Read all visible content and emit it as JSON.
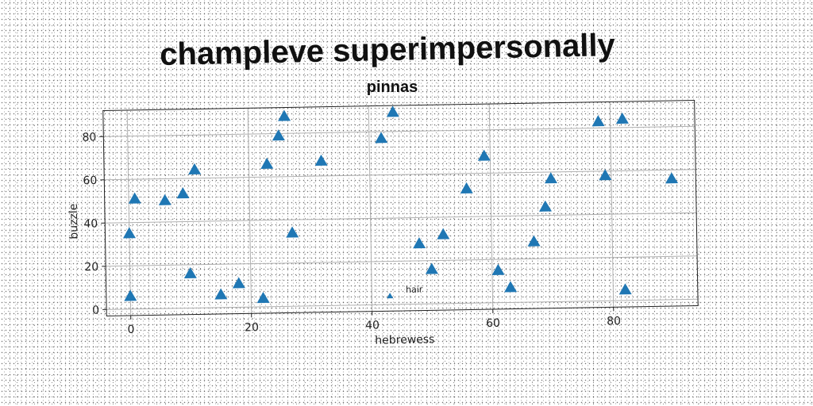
{
  "chart_data": {
    "type": "scatter",
    "title": "champleve superimpersonally",
    "subtitle": "pinnas",
    "xlabel": "hebrewess",
    "ylabel": "buzzle",
    "xlim": [
      -4,
      94
    ],
    "ylim": [
      -3,
      92
    ],
    "x_ticks": [
      0,
      20,
      40,
      60,
      80
    ],
    "y_ticks": [
      0,
      20,
      40,
      60,
      80
    ],
    "grid": true,
    "marker": "triangle-up",
    "color": "#1f77b4",
    "series": [
      {
        "points": [
          [
            0,
            6
          ],
          [
            0,
            35
          ],
          [
            1,
            51
          ],
          [
            6,
            50
          ],
          [
            9,
            53
          ],
          [
            10,
            16
          ],
          [
            11,
            64
          ],
          [
            15,
            6
          ],
          [
            18,
            11
          ],
          [
            22,
            4
          ],
          [
            23,
            66
          ],
          [
            25,
            79
          ],
          [
            26,
            88
          ],
          [
            27,
            34
          ],
          [
            32,
            67
          ],
          [
            42,
            77
          ],
          [
            44,
            89
          ],
          [
            48,
            28
          ],
          [
            50,
            16
          ],
          [
            52,
            32
          ],
          [
            56,
            53
          ],
          [
            59,
            68
          ],
          [
            61,
            15
          ],
          [
            63,
            7
          ],
          [
            67,
            28
          ],
          [
            69,
            44
          ],
          [
            70,
            57
          ],
          [
            78,
            83
          ],
          [
            79,
            58
          ],
          [
            82,
            84
          ],
          [
            82,
            5
          ],
          [
            90,
            56
          ]
        ]
      }
    ],
    "annotations": [
      {
        "text": "hair",
        "x": 43,
        "y": 4
      }
    ]
  }
}
